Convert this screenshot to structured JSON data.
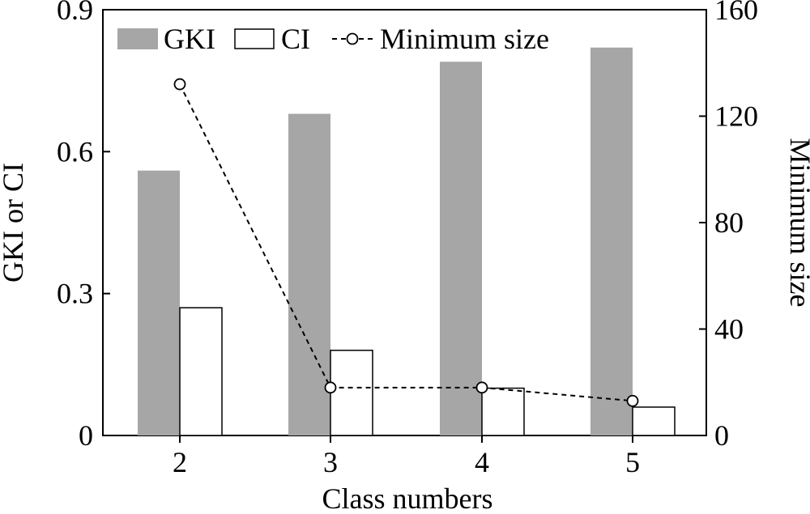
{
  "chart_data": {
    "type": "bar",
    "xlabel": "Class numbers",
    "ylabel_left": "GKI or CI",
    "ylabel_right": "Minimum size",
    "categories": [
      "2",
      "3",
      "4",
      "5"
    ],
    "ylim_left": [
      0,
      0.9
    ],
    "ylim_right": [
      0,
      160
    ],
    "yticks_left": [
      "0",
      "0.3",
      "0.6",
      "0.9"
    ],
    "yticks_left_values": [
      0,
      0.3,
      0.6,
      0.9
    ],
    "yticks_right": [
      "0",
      "40",
      "80",
      "120",
      "160"
    ],
    "yticks_right_values": [
      0,
      40,
      80,
      120,
      160
    ],
    "grid": false,
    "legend_placement": "top-left",
    "series": [
      {
        "name": "GKI",
        "kind": "bar",
        "axis": "left",
        "fill": "#a6a6a6",
        "stroke": "none",
        "values": [
          0.56,
          0.68,
          0.79,
          0.82
        ]
      },
      {
        "name": "CI",
        "kind": "bar",
        "axis": "left",
        "fill": "#ffffff",
        "stroke": "#000000",
        "values": [
          0.27,
          0.18,
          0.1,
          0.06
        ]
      },
      {
        "name": "Minimum size",
        "kind": "line",
        "axis": "right",
        "stroke": "#000000",
        "dashed": true,
        "marker": "open-circle",
        "values": [
          132,
          18,
          18,
          13
        ]
      }
    ]
  }
}
